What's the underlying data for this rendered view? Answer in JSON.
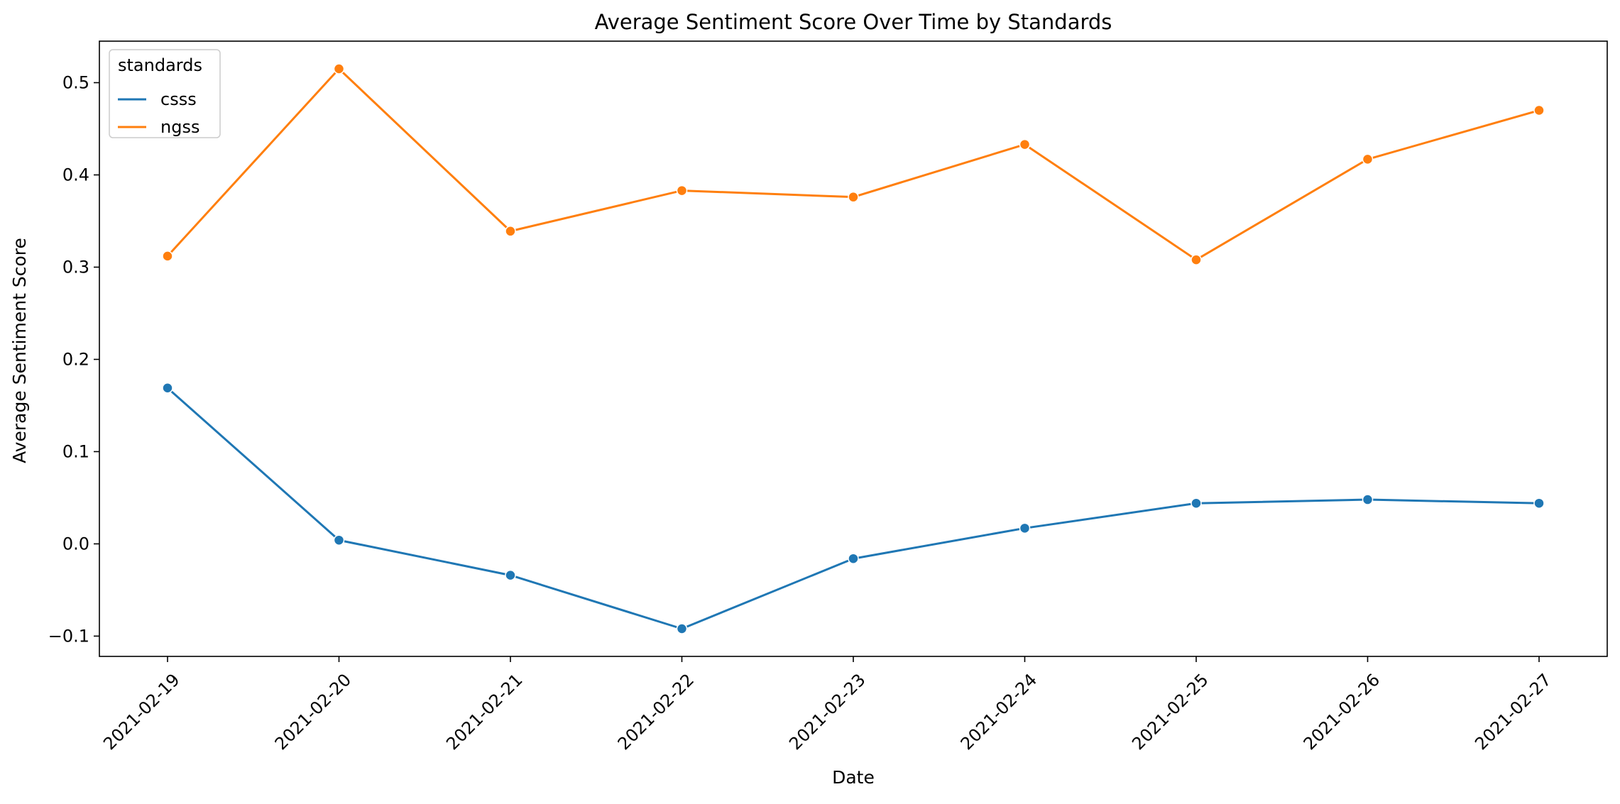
{
  "chart_data": {
    "type": "line",
    "title": "Average Sentiment Score Over Time by Standards",
    "xlabel": "Date",
    "ylabel": "Average Sentiment Score",
    "categories": [
      "2021-02-19",
      "2021-02-20",
      "2021-02-21",
      "2021-02-22",
      "2021-02-23",
      "2021-02-24",
      "2021-02-25",
      "2021-02-26",
      "2021-02-27"
    ],
    "ylim": [
      -0.122,
      0.545
    ],
    "yticks": [
      -0.1,
      0.0,
      0.1,
      0.2,
      0.3,
      0.4,
      0.5
    ],
    "ytick_labels": [
      "−0.1",
      "0.0",
      "0.1",
      "0.2",
      "0.3",
      "0.4",
      "0.5"
    ],
    "grid": false,
    "legend": {
      "title": "standards",
      "placement": "top-left"
    },
    "series": [
      {
        "name": "csss",
        "color": "#1f77b4",
        "marker": "circle",
        "values": [
          0.169,
          0.004,
          -0.034,
          -0.092,
          -0.016,
          0.017,
          0.044,
          0.048,
          0.044
        ]
      },
      {
        "name": "ngss",
        "color": "#ff7f0e",
        "marker": "circle",
        "values": [
          0.312,
          0.515,
          0.339,
          0.383,
          0.376,
          0.433,
          0.308,
          0.417,
          0.47
        ]
      }
    ]
  }
}
